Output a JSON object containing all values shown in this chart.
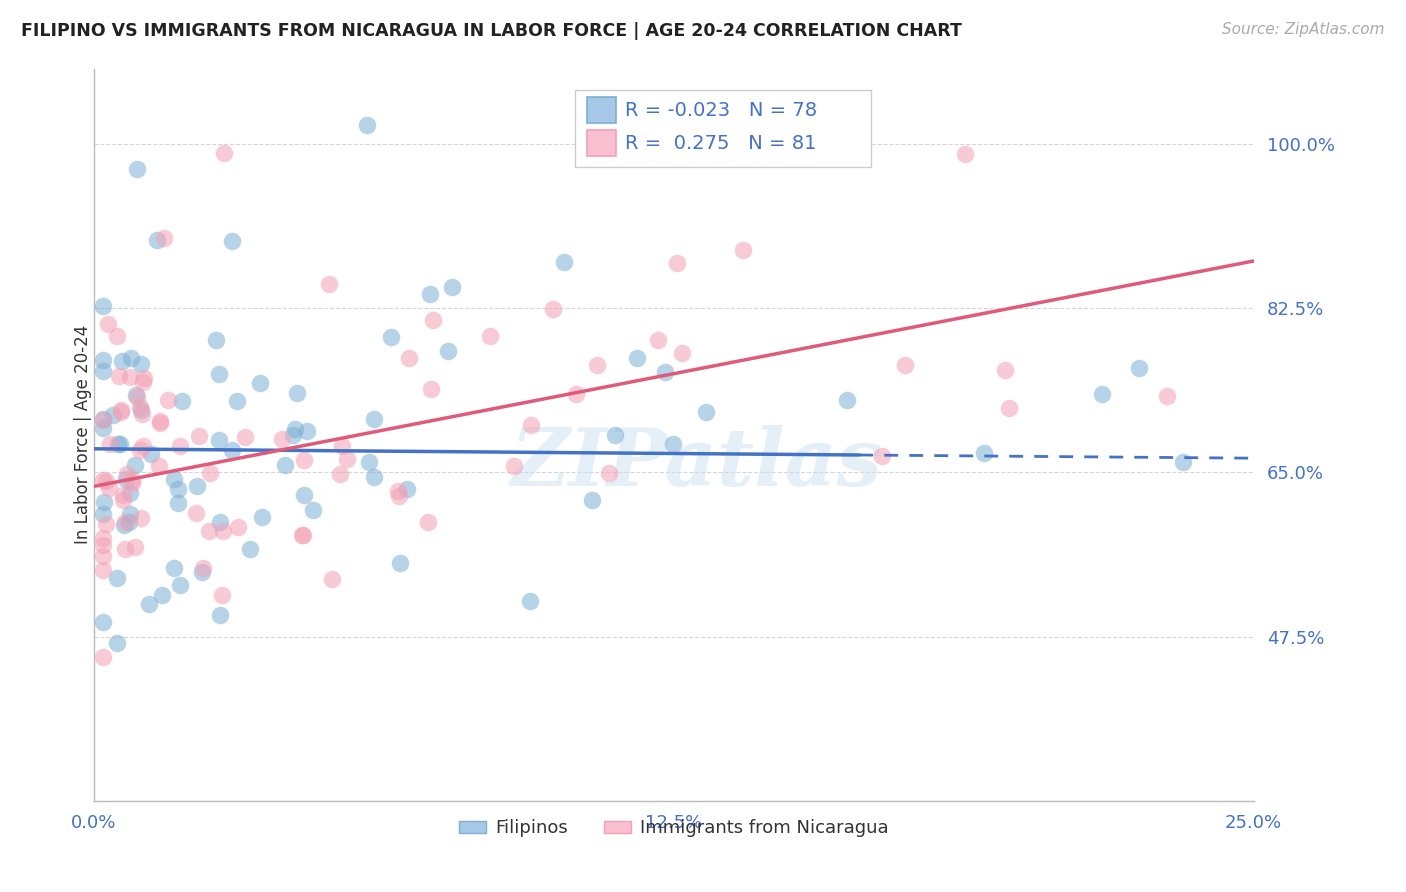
{
  "title": "FILIPINO VS IMMIGRANTS FROM NICARAGUA IN LABOR FORCE | AGE 20-24 CORRELATION CHART",
  "source": "Source: ZipAtlas.com",
  "ylabel": "In Labor Force | Age 20-24",
  "legend_labels": [
    "Filipinos",
    "Immigrants from Nicaragua"
  ],
  "R_filipino": -0.023,
  "N_filipino": 78,
  "R_nicaragua": 0.275,
  "N_nicaragua": 81,
  "filipino_color": "#7bafd4",
  "nicaragua_color": "#f4a0b5",
  "watermark": "ZIPatlas",
  "xlim": [
    0,
    25
  ],
  "ylim": [
    30,
    108
  ],
  "ytick_vals": [
    47.5,
    65.0,
    82.5,
    100.0
  ],
  "xtick_vals": [
    0.0,
    12.5,
    25.0
  ],
  "background_color": "#ffffff",
  "grid_color": "#cccccc",
  "fil_line_x0": 0,
  "fil_line_x1": 25,
  "fil_line_y0": 67.5,
  "fil_line_y1": 66.5,
  "fil_dash_start": 16.5,
  "nic_line_x0": 0,
  "nic_line_x1": 25,
  "nic_line_y0": 63.5,
  "nic_line_y1": 87.5
}
